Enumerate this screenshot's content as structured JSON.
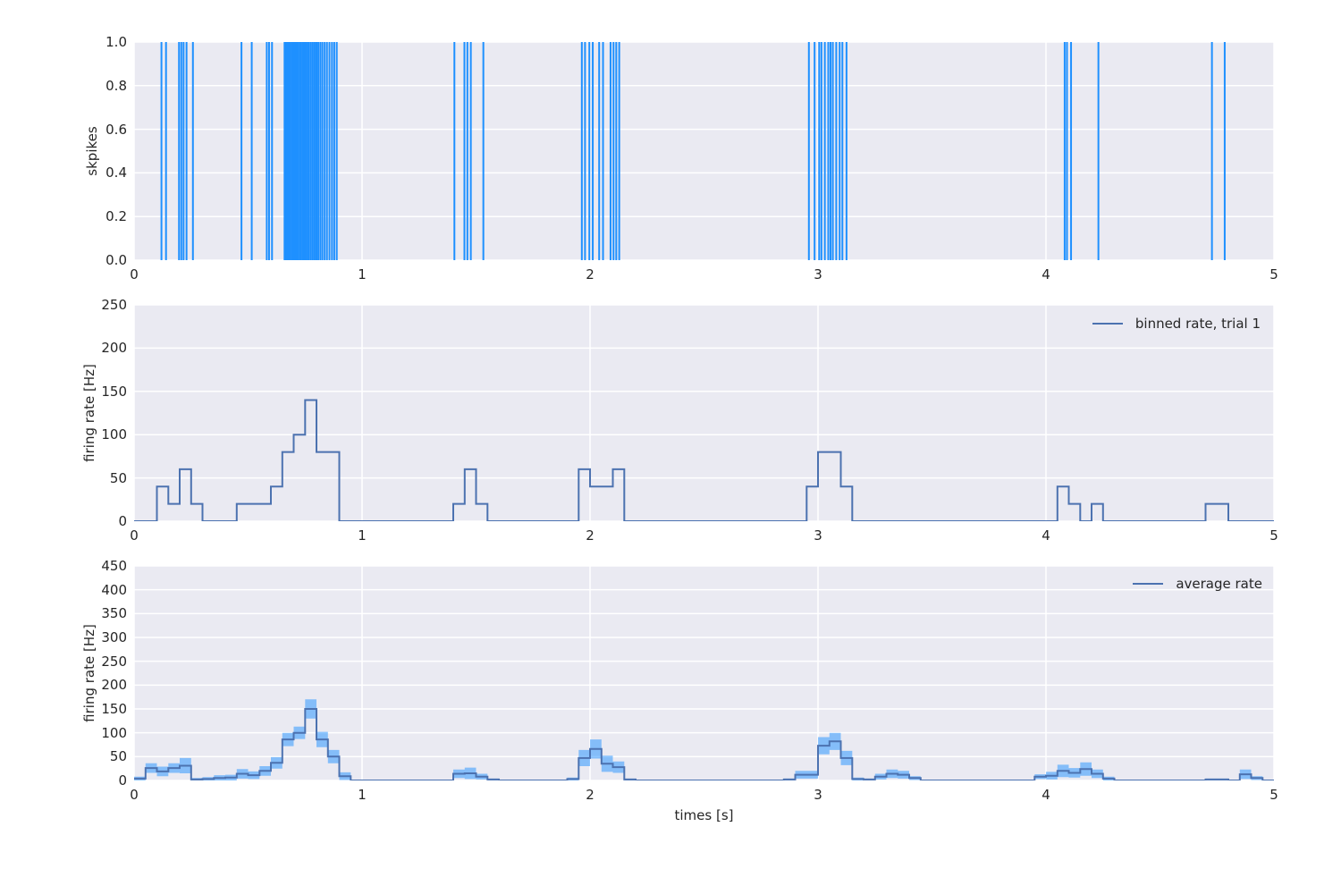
{
  "figure": {
    "background": "#ffffff",
    "axes_background": "#eaeaf2",
    "grid_color": "#ffffff",
    "text_color": "#262626",
    "xlabel": "times [s]"
  },
  "chart_data": [
    {
      "type": "raster",
      "ylabel": "skpikes",
      "xlim": [
        0,
        5
      ],
      "ylim": [
        0.0,
        1.0
      ],
      "xticks": {
        "values": [
          0,
          1,
          2,
          3,
          4,
          5
        ],
        "labels": [
          "0",
          "1",
          "2",
          "3",
          "4",
          "5"
        ]
      },
      "yticks": {
        "values": [
          0.0,
          0.2,
          0.4,
          0.6,
          0.8,
          1.0
        ],
        "labels": [
          "0.0",
          "0.2",
          "0.4",
          "0.6",
          "0.8",
          "1.0"
        ]
      },
      "grid": true,
      "spike_color": "#1e90ff",
      "spike_times": [
        0.12,
        0.14,
        0.197,
        0.207,
        0.217,
        0.23,
        0.258,
        0.471,
        0.516,
        0.582,
        0.592,
        0.605,
        0.66,
        0.664,
        0.669,
        0.674,
        0.68,
        0.686,
        0.693,
        0.7,
        0.706,
        0.712,
        0.719,
        0.726,
        0.733,
        0.74,
        0.747,
        0.754,
        0.761,
        0.768,
        0.776,
        0.784,
        0.792,
        0.8,
        0.808,
        0.817,
        0.826,
        0.836,
        0.846,
        0.857,
        0.868,
        0.878,
        0.889,
        1.405,
        1.449,
        1.462,
        1.477,
        1.532,
        1.964,
        1.978,
        1.997,
        2.012,
        2.04,
        2.057,
        2.09,
        2.103,
        2.115,
        2.128,
        2.96,
        2.985,
        3.005,
        3.015,
        3.03,
        3.045,
        3.055,
        3.065,
        3.08,
        3.095,
        3.107,
        3.125,
        4.082,
        4.092,
        4.11,
        4.23,
        4.728,
        4.784
      ]
    },
    {
      "type": "line",
      "subtype": "step",
      "legend": "binned rate, trial 1",
      "legend_position": "upper right",
      "ylabel": "firing rate [Hz]",
      "xlim": [
        0,
        5
      ],
      "ylim": [
        0,
        250
      ],
      "xticks": {
        "values": [
          0,
          1,
          2,
          3,
          4,
          5
        ],
        "labels": [
          "0",
          "1",
          "2",
          "3",
          "4",
          "5"
        ]
      },
      "yticks": {
        "values": [
          0,
          50,
          100,
          150,
          200,
          250
        ],
        "labels": [
          "0",
          "50",
          "100",
          "150",
          "200",
          "250"
        ]
      },
      "grid": true,
      "line_color": "#4c72b0",
      "bin_width": 0.05,
      "values": [
        0,
        0,
        40,
        20,
        60,
        20,
        0,
        0,
        0,
        20,
        20,
        20,
        40,
        80,
        100,
        140,
        80,
        80,
        0,
        0,
        0,
        0,
        0,
        0,
        0,
        0,
        0,
        0,
        20,
        60,
        20,
        0,
        0,
        0,
        0,
        0,
        0,
        0,
        0,
        60,
        40,
        40,
        60,
        0,
        0,
        0,
        0,
        0,
        0,
        0,
        0,
        0,
        0,
        0,
        0,
        0,
        0,
        0,
        0,
        40,
        80,
        80,
        40,
        0,
        0,
        0,
        0,
        0,
        0,
        0,
        0,
        0,
        0,
        0,
        0,
        0,
        0,
        0,
        0,
        0,
        0,
        40,
        20,
        0,
        20,
        0,
        0,
        0,
        0,
        0,
        0,
        0,
        0,
        0,
        20,
        20,
        0,
        0,
        0,
        0
      ]
    },
    {
      "type": "area",
      "subtype": "step-with-band",
      "legend": "average rate",
      "legend_position": "upper right",
      "ylabel": "firing rate [Hz]",
      "xlim": [
        0,
        5
      ],
      "ylim": [
        0,
        450
      ],
      "xticks": {
        "values": [
          0,
          1,
          2,
          3,
          4,
          5
        ],
        "labels": [
          "0",
          "1",
          "2",
          "3",
          "4",
          "5"
        ]
      },
      "yticks": {
        "values": [
          0,
          50,
          100,
          150,
          200,
          250,
          300,
          350,
          400,
          450
        ],
        "labels": [
          "0",
          "50",
          "100",
          "150",
          "200",
          "250",
          "300",
          "350",
          "400",
          "450"
        ]
      },
      "grid": true,
      "line_color": "#4c72b0",
      "band_color": "rgba(30,144,255,0.5)",
      "bin_width": 0.05,
      "mean": [
        4,
        26,
        19,
        26,
        31,
        2,
        3,
        5,
        6,
        14,
        11,
        20,
        37,
        86,
        100,
        150,
        86,
        50,
        9,
        0,
        0,
        0,
        0,
        0,
        0,
        0,
        0,
        0,
        14,
        15,
        8,
        2,
        0,
        0,
        0,
        0,
        0,
        0,
        3,
        47,
        66,
        35,
        28,
        2,
        0,
        0,
        0,
        0,
        0,
        0,
        0,
        0,
        0,
        0,
        0,
        0,
        0,
        2,
        12,
        12,
        73,
        82,
        47,
        3,
        2,
        8,
        14,
        12,
        5,
        0,
        0,
        0,
        0,
        0,
        0,
        0,
        0,
        0,
        0,
        8,
        10,
        20,
        16,
        24,
        14,
        4,
        0,
        0,
        0,
        0,
        0,
        0,
        0,
        0,
        2,
        2,
        0,
        13,
        5,
        0
      ],
      "band_halfwidth": [
        4,
        10,
        10,
        10,
        16,
        3,
        4,
        6,
        6,
        10,
        8,
        10,
        12,
        14,
        13,
        20,
        16,
        14,
        8,
        0,
        0,
        0,
        0,
        0,
        0,
        0,
        0,
        0,
        9,
        12,
        6,
        2,
        0,
        0,
        0,
        0,
        0,
        0,
        3,
        17,
        20,
        17,
        12,
        2,
        0,
        0,
        0,
        0,
        0,
        0,
        0,
        0,
        0,
        0,
        0,
        0,
        0,
        2,
        8,
        8,
        18,
        18,
        15,
        3,
        2,
        6,
        9,
        8,
        4,
        0,
        0,
        0,
        0,
        0,
        0,
        0,
        0,
        0,
        0,
        5,
        8,
        13,
        10,
        14,
        9,
        4,
        0,
        0,
        0,
        0,
        0,
        0,
        0,
        0,
        2,
        2,
        0,
        10,
        4,
        0
      ]
    }
  ]
}
